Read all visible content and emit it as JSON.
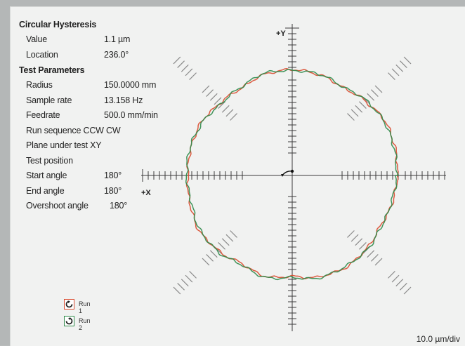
{
  "chart_data": {
    "type": "polar",
    "title": "Circular Hysteresis",
    "axis_labels": {
      "y": "+Y",
      "x": "+X"
    },
    "scale_label": "10.0 µm/div",
    "radial_unit": "µm",
    "nominal_radius_divs": 6,
    "angle_deg": [
      0,
      15,
      30,
      45,
      60,
      75,
      90,
      105,
      120,
      135,
      150,
      165,
      180,
      195,
      210,
      225,
      240,
      255,
      270,
      285,
      300,
      315,
      330,
      345
    ],
    "series": [
      {
        "name": "Run 1",
        "color": "#d94a2e",
        "deviation_um": [
          0.3,
          0.6,
          0.8,
          0.2,
          -0.3,
          0.2,
          0.5,
          0.3,
          -0.4,
          -0.2,
          0.4,
          0.3,
          0.2,
          0.5,
          0.9,
          0.4,
          -0.3,
          0.2,
          -0.4,
          0.3,
          0.6,
          0.2,
          -0.3,
          0.1
        ]
      },
      {
        "name": "Run 2",
        "color": "#2f8a4a",
        "deviation_um": [
          0.2,
          0.4,
          0.6,
          0.4,
          -0.2,
          0.3,
          0.3,
          0.5,
          -0.2,
          -0.4,
          0.2,
          0.5,
          0.4,
          0.2,
          0.7,
          0.6,
          -0.1,
          0.4,
          -0.2,
          0.5,
          0.4,
          0.4,
          -0.1,
          -0.1
        ]
      }
    ]
  },
  "circular_hysteresis": {
    "title": "Circular Hysteresis",
    "value_label": "Value",
    "value": "1.1 µm",
    "location_label": "Location",
    "location": "236.0°"
  },
  "test_parameters": {
    "title": "Test Parameters",
    "radius_label": "Radius",
    "radius": "150.0000 mm",
    "sample_rate_label": "Sample rate",
    "sample_rate": "13.158 Hz",
    "feedrate_label": "Feedrate",
    "feedrate": "500.0 mm/min",
    "run_sequence": "Run sequence CCW CW",
    "plane": "Plane under test XY",
    "test_position": "Test position",
    "start_angle_label": "Start angle",
    "start_angle": "180°",
    "end_angle_label": "End angle",
    "end_angle": "180°",
    "overshoot_label": "Overshoot angle",
    "overshoot": "180°"
  },
  "legend": {
    "run1": {
      "label": "Run 1",
      "icon": "ccw-arrow-icon",
      "color": "#d94a2e"
    },
    "run2": {
      "label": "Run 2",
      "icon": "cw-arrow-icon",
      "color": "#2f8a4a"
    }
  },
  "colors": {
    "grid": "#3a3a3a",
    "tick_diag": "#8a8a8a",
    "background": "#f1f2f1"
  }
}
